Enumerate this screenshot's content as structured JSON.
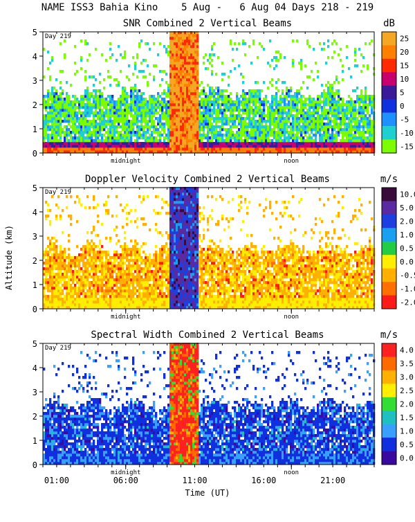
{
  "header": {
    "title": "NAME ISS3 Bahia Kino    5 Aug -   6 Aug 04 Days 218 - 219"
  },
  "shared": {
    "ylabel": "Altitude (km)",
    "xlabel": "Time (UT)",
    "yticks": [
      0,
      1,
      2,
      3,
      4,
      5
    ],
    "ylim": [
      0,
      5
    ],
    "xlim_hours": [
      0,
      24
    ],
    "time_ticks": [
      {
        "hour": 1,
        "label": "01:00"
      },
      {
        "hour": 6,
        "label": "06:00"
      },
      {
        "hour": 11,
        "label": "11:00"
      },
      {
        "hour": 16,
        "label": "16:00"
      },
      {
        "hour": 21,
        "label": "21:00"
      }
    ],
    "midnight": {
      "hour": 6,
      "label": "midnight"
    },
    "noon": {
      "hour": 18,
      "label": "noon"
    },
    "day_label": "Day 219"
  },
  "chart_data": [
    {
      "type": "heatmap",
      "title": "SNR Combined 2 Vertical Beams",
      "unit": "dB",
      "colorbar": {
        "labels": [
          "25",
          "20",
          "15",
          "10",
          "5",
          "0",
          "-5",
          "-10",
          "-15"
        ],
        "colors": [
          "#f5a623",
          "#ff7f00",
          "#ff2a00",
          "#c8006e",
          "#3a1a99",
          "#1030e0",
          "#1e90ff",
          "#20d0d0",
          "#7cfc00"
        ]
      }
    },
    {
      "type": "heatmap",
      "title": "Doppler Velocity Combined 2 Vertical Beams",
      "unit": "m/s",
      "colorbar": {
        "labels": [
          "10.0",
          "5.0",
          "2.0",
          "1.0",
          "0.5",
          "0.0",
          "-0.5",
          "-1.0",
          "-2.0"
        ],
        "colors": [
          "#3a0a3a",
          "#5a2aa0",
          "#1e3fe0",
          "#1aa0f0",
          "#22cc44",
          "#ffee00",
          "#ffb000",
          "#ff7000",
          "#ff1a1a"
        ]
      }
    },
    {
      "type": "heatmap",
      "title": "Spectral Width Combined 2 Vertical Beams",
      "unit": "m/s",
      "colorbar": {
        "labels": [
          "4.0",
          "3.5",
          "3.0",
          "2.5",
          "2.0",
          "1.5",
          "1.0",
          "0.5",
          "0.0"
        ],
        "colors": [
          "#ff2020",
          "#ff6a00",
          "#ffb000",
          "#ffee00",
          "#33dd33",
          "#20c0c0",
          "#3aa0ff",
          "#1030e0",
          "#3a0aa0"
        ]
      }
    }
  ]
}
